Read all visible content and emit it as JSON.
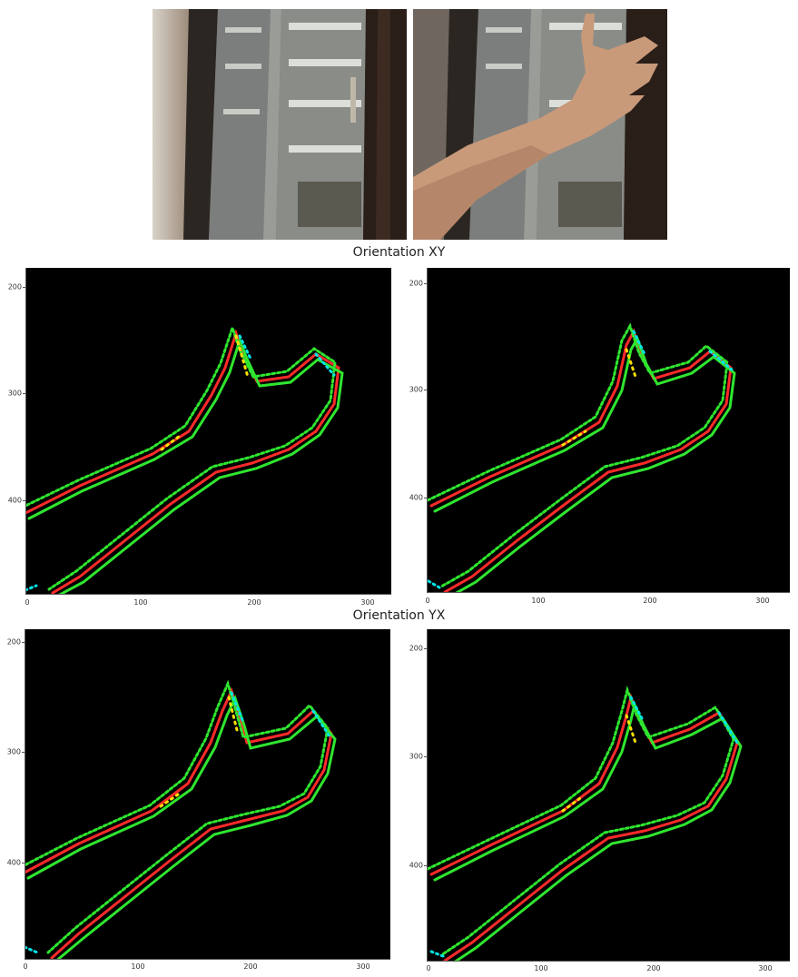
{
  "photos": [
    {
      "name": "window-photo"
    },
    {
      "name": "hand-photo"
    }
  ],
  "sections": [
    {
      "title": "Orientation XY"
    },
    {
      "title": "Orientation YX"
    }
  ],
  "plots": [
    {
      "yticks": [
        "200",
        "300",
        "400"
      ],
      "xticks": [
        "0",
        "100",
        "200",
        "300"
      ]
    },
    {
      "yticks": [
        "200",
        "300",
        "400"
      ],
      "xticks": [
        "0",
        "100",
        "200",
        "300"
      ]
    },
    {
      "yticks": [
        "200",
        "300",
        "400"
      ],
      "xticks": [
        "0",
        "100",
        "200",
        "300"
      ]
    },
    {
      "yticks": [
        "200",
        "300",
        "400"
      ],
      "xticks": [
        "0",
        "100",
        "200",
        "300"
      ]
    }
  ]
}
